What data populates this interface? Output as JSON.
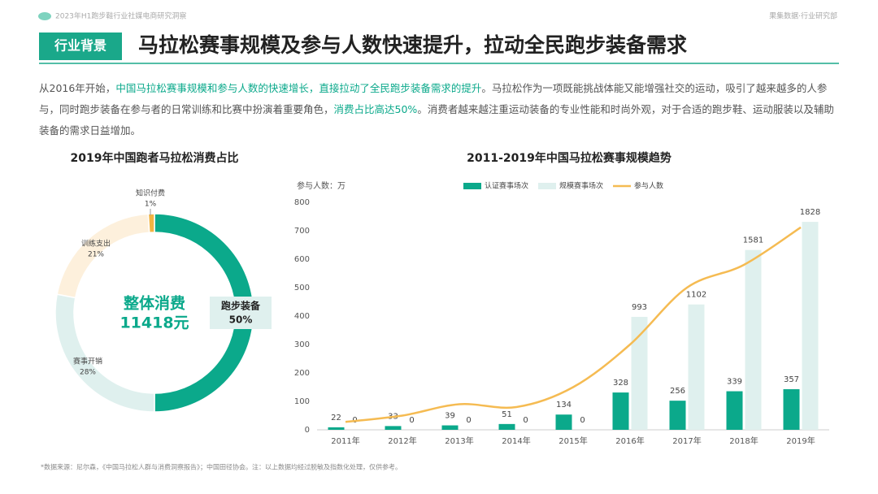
{
  "header": {
    "report": "2023年H1跑步鞋行业社媒电商研究洞察",
    "brand": "果集数据·行业研究部"
  },
  "tag": "行业背景",
  "title": "马拉松赛事规模及参与人数快速提升，拉动全民跑步装备需求",
  "intro": [
    {
      "text": "从2016年开始，",
      "highlight": false
    },
    {
      "text": "中国马拉松赛事规模和参与人数的快速增长，直接拉动了全民跑步装备需求的提升",
      "highlight": true
    },
    {
      "text": "。马拉松作为一项既能挑战体能又能增强社交的运动，吸引了越来越多的人参与，同时跑步装备在参与者的日常训练和比赛中扮演着重要角色，",
      "highlight": false
    },
    {
      "text": "消费占比高达50%",
      "highlight": true
    },
    {
      "text": "。消费者越来越注重运动装备的专业性能和时尚外观，对于合适的跑步鞋、运动服装以及辅助装备的需求日益增加。",
      "highlight": false
    }
  ],
  "footnote": "*数据来源：尼尔森，《中国马拉松人群与消费洞察报告》；中国田径协会。注：以上数据均经过脱敏及指数化处理，仅供参考。",
  "chart_data": [
    {
      "type": "donut",
      "title": "2019年中国跑者马拉松消费占比",
      "center_title": "整体消费",
      "center_value": "11418元",
      "categories": [
        "跑步装备",
        "赛事开销",
        "训练支出",
        "知识付费"
      ],
      "values": [
        50,
        28,
        21,
        1
      ],
      "value_labels": [
        "50%",
        "28%",
        "21%",
        "1%"
      ],
      "colors": [
        "#0ba98b",
        "#dff0ee",
        "#fdf0dc",
        "#f2b443"
      ]
    },
    {
      "type": "bar-line",
      "title": "2011-2019年中国马拉松赛事规模趋势",
      "ylabel": "参与人数：万",
      "categories": [
        "2011年",
        "2012年",
        "2013年",
        "2014年",
        "2015年",
        "2016年",
        "2017年",
        "2018年",
        "2019年"
      ],
      "ylim": [
        0,
        800
      ],
      "yticks": [
        0,
        100,
        200,
        300,
        400,
        500,
        600,
        700,
        800
      ],
      "y2lim": [
        0,
        2000
      ],
      "series": [
        {
          "name": "认证赛事场次",
          "type": "bar",
          "axis": "y2",
          "color": "#0ba98b",
          "values": [
            22,
            33,
            39,
            51,
            134,
            328,
            256,
            339,
            357
          ]
        },
        {
          "name": "规模赛事场次",
          "type": "bar",
          "axis": "y2",
          "color": "#dff0ee",
          "values": [
            0,
            0,
            0,
            0,
            0,
            993,
            1102,
            1581,
            1828
          ]
        },
        {
          "name": "参与人数",
          "type": "line",
          "color": "#f5bb52",
          "values": [
            28,
            50,
            90,
            80,
            150,
            300,
            500,
            580,
            712
          ]
        }
      ]
    }
  ]
}
